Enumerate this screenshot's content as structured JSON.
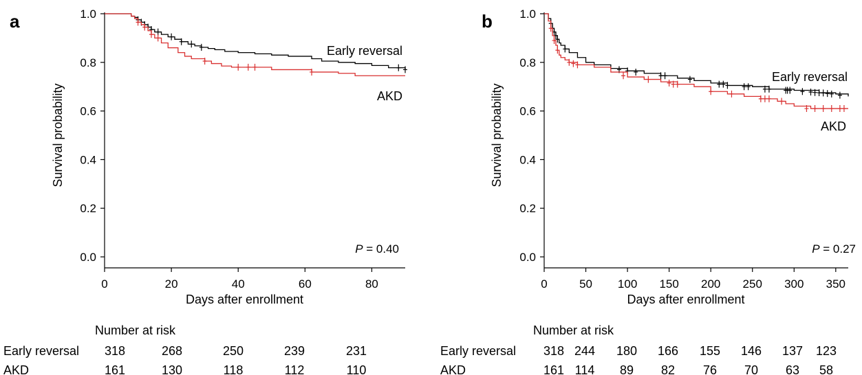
{
  "chart_data": [
    {
      "type": "line",
      "panel_label": "a",
      "xlabel": "Days after enrollment",
      "ylabel": "Survival probability",
      "xlim": [
        0,
        90
      ],
      "ylim": [
        0,
        1
      ],
      "xticks": [
        0,
        20,
        40,
        60,
        80
      ],
      "xtick_labels": [
        "0",
        "20",
        "40",
        "60",
        "80"
      ],
      "yticks": [
        0,
        0.2,
        0.4,
        0.6,
        0.8,
        1.0
      ],
      "ytick_labels": [
        "0.0",
        "0.2",
        "0.4",
        "0.6",
        "0.8",
        "1.0"
      ],
      "grid": false,
      "annotation": {
        "p_label": "P",
        "p_value": "= 0.40"
      },
      "series": [
        {
          "name": "Early reversal",
          "color": "#000000",
          "x": [
            0,
            8,
            9,
            10,
            11,
            12,
            13,
            14,
            15,
            17,
            19,
            21,
            23,
            25,
            27,
            29,
            31,
            33,
            36,
            40,
            45,
            50,
            55,
            62,
            65,
            70,
            75,
            80,
            85,
            90
          ],
          "y": [
            1.0,
            0.99,
            0.985,
            0.975,
            0.965,
            0.955,
            0.945,
            0.935,
            0.925,
            0.915,
            0.905,
            0.895,
            0.885,
            0.875,
            0.868,
            0.862,
            0.857,
            0.852,
            0.845,
            0.84,
            0.835,
            0.83,
            0.825,
            0.815,
            0.805,
            0.8,
            0.795,
            0.787,
            0.778,
            0.77
          ],
          "censor_x": [
            10,
            11,
            12,
            13,
            14,
            16,
            20,
            23,
            26,
            29,
            88,
            90
          ],
          "censor_y": [
            0.975,
            0.965,
            0.955,
            0.945,
            0.935,
            0.925,
            0.905,
            0.885,
            0.875,
            0.862,
            0.778,
            0.77
          ]
        },
        {
          "name": "AKD",
          "color": "#d93030",
          "x": [
            0,
            8,
            9,
            10,
            11,
            12,
            13,
            14,
            15,
            17,
            19,
            22,
            24,
            26,
            30,
            32,
            35,
            38,
            50,
            62,
            70,
            75,
            90
          ],
          "y": [
            1.0,
            0.99,
            0.98,
            0.965,
            0.955,
            0.945,
            0.93,
            0.915,
            0.9,
            0.88,
            0.86,
            0.84,
            0.825,
            0.815,
            0.805,
            0.795,
            0.785,
            0.78,
            0.77,
            0.76,
            0.755,
            0.745,
            0.745
          ],
          "censor_x": [
            10,
            12,
            14,
            16,
            30,
            40,
            43,
            45,
            62
          ],
          "censor_y": [
            0.965,
            0.945,
            0.915,
            0.9,
            0.805,
            0.78,
            0.78,
            0.78,
            0.76
          ]
        }
      ],
      "risk_table": {
        "title": "Number at risk",
        "times": [
          0,
          20,
          40,
          60,
          80
        ],
        "rows": [
          {
            "name": "Early reversal",
            "values": [
              "318",
              "268",
              "250",
              "239",
              "231"
            ]
          },
          {
            "name": "AKD",
            "values": [
              "161",
              "130",
              "118",
              "112",
              "110"
            ]
          }
        ]
      }
    },
    {
      "type": "line",
      "panel_label": "b",
      "xlabel": "Days after enrollment",
      "ylabel": "Survival probability",
      "xlim": [
        0,
        365
      ],
      "ylim": [
        0,
        1
      ],
      "xticks": [
        0,
        50,
        100,
        150,
        200,
        250,
        300,
        350
      ],
      "xtick_labels": [
        "0",
        "50",
        "100",
        "150",
        "200",
        "250",
        "300",
        "350"
      ],
      "yticks": [
        0,
        0.2,
        0.4,
        0.6,
        0.8,
        1.0
      ],
      "ytick_labels": [
        "0.0",
        "0.2",
        "0.4",
        "0.6",
        "0.8",
        "1.0"
      ],
      "grid": false,
      "annotation": {
        "p_label": "P",
        "p_value": "= 0.27"
      },
      "series": [
        {
          "name": "Early reversal",
          "color": "#000000",
          "x": [
            0,
            5,
            8,
            10,
            12,
            14,
            16,
            18,
            20,
            25,
            30,
            40,
            50,
            60,
            80,
            100,
            120,
            140,
            160,
            180,
            200,
            220,
            250,
            270,
            300,
            330,
            350,
            365
          ],
          "y": [
            1.0,
            0.98,
            0.96,
            0.94,
            0.925,
            0.91,
            0.895,
            0.88,
            0.87,
            0.855,
            0.84,
            0.82,
            0.8,
            0.79,
            0.775,
            0.765,
            0.755,
            0.745,
            0.735,
            0.725,
            0.715,
            0.705,
            0.7,
            0.69,
            0.685,
            0.675,
            0.67,
            0.66
          ],
          "censor_x": [
            8,
            10,
            12,
            14,
            16,
            25,
            90,
            100,
            110,
            140,
            145,
            175,
            210,
            215,
            220,
            240,
            245,
            265,
            270,
            290,
            292,
            295,
            310,
            320,
            325,
            330,
            335,
            340,
            345,
            355
          ],
          "censor_y": [
            0.96,
            0.94,
            0.925,
            0.91,
            0.895,
            0.855,
            0.77,
            0.765,
            0.76,
            0.745,
            0.745,
            0.73,
            0.71,
            0.71,
            0.705,
            0.7,
            0.7,
            0.69,
            0.69,
            0.685,
            0.685,
            0.685,
            0.68,
            0.678,
            0.676,
            0.675,
            0.674,
            0.672,
            0.67,
            0.665
          ]
        },
        {
          "name": "AKD",
          "color": "#d93030",
          "x": [
            0,
            5,
            8,
            10,
            12,
            14,
            16,
            18,
            20,
            25,
            30,
            40,
            60,
            80,
            100,
            120,
            140,
            160,
            180,
            200,
            220,
            240,
            260,
            280,
            290,
            300,
            320,
            340,
            365
          ],
          "y": [
            1.0,
            0.97,
            0.94,
            0.91,
            0.89,
            0.87,
            0.85,
            0.83,
            0.82,
            0.81,
            0.8,
            0.79,
            0.78,
            0.76,
            0.74,
            0.73,
            0.72,
            0.71,
            0.7,
            0.68,
            0.67,
            0.66,
            0.65,
            0.64,
            0.63,
            0.62,
            0.61,
            0.61,
            0.61
          ],
          "censor_x": [
            8,
            12,
            16,
            30,
            35,
            40,
            95,
            125,
            150,
            155,
            160,
            200,
            225,
            260,
            265,
            270,
            285,
            315,
            325,
            335,
            345,
            355,
            360
          ],
          "censor_y": [
            0.94,
            0.89,
            0.85,
            0.8,
            0.795,
            0.79,
            0.745,
            0.73,
            0.715,
            0.71,
            0.71,
            0.68,
            0.67,
            0.65,
            0.65,
            0.65,
            0.64,
            0.61,
            0.61,
            0.61,
            0.61,
            0.61,
            0.61
          ]
        }
      ],
      "risk_table": {
        "title": "Number at risk",
        "times": [
          0,
          50,
          100,
          150,
          200,
          250,
          300,
          350
        ],
        "rows": [
          {
            "name": "Early reversal",
            "values": [
              "318",
              "244",
              "180",
              "166",
              "155",
              "146",
              "137",
              "123"
            ]
          },
          {
            "name": "AKD",
            "values": [
              "161",
              "114",
              "89",
              "82",
              "76",
              "70",
              "63",
              "58"
            ]
          }
        ]
      }
    }
  ]
}
